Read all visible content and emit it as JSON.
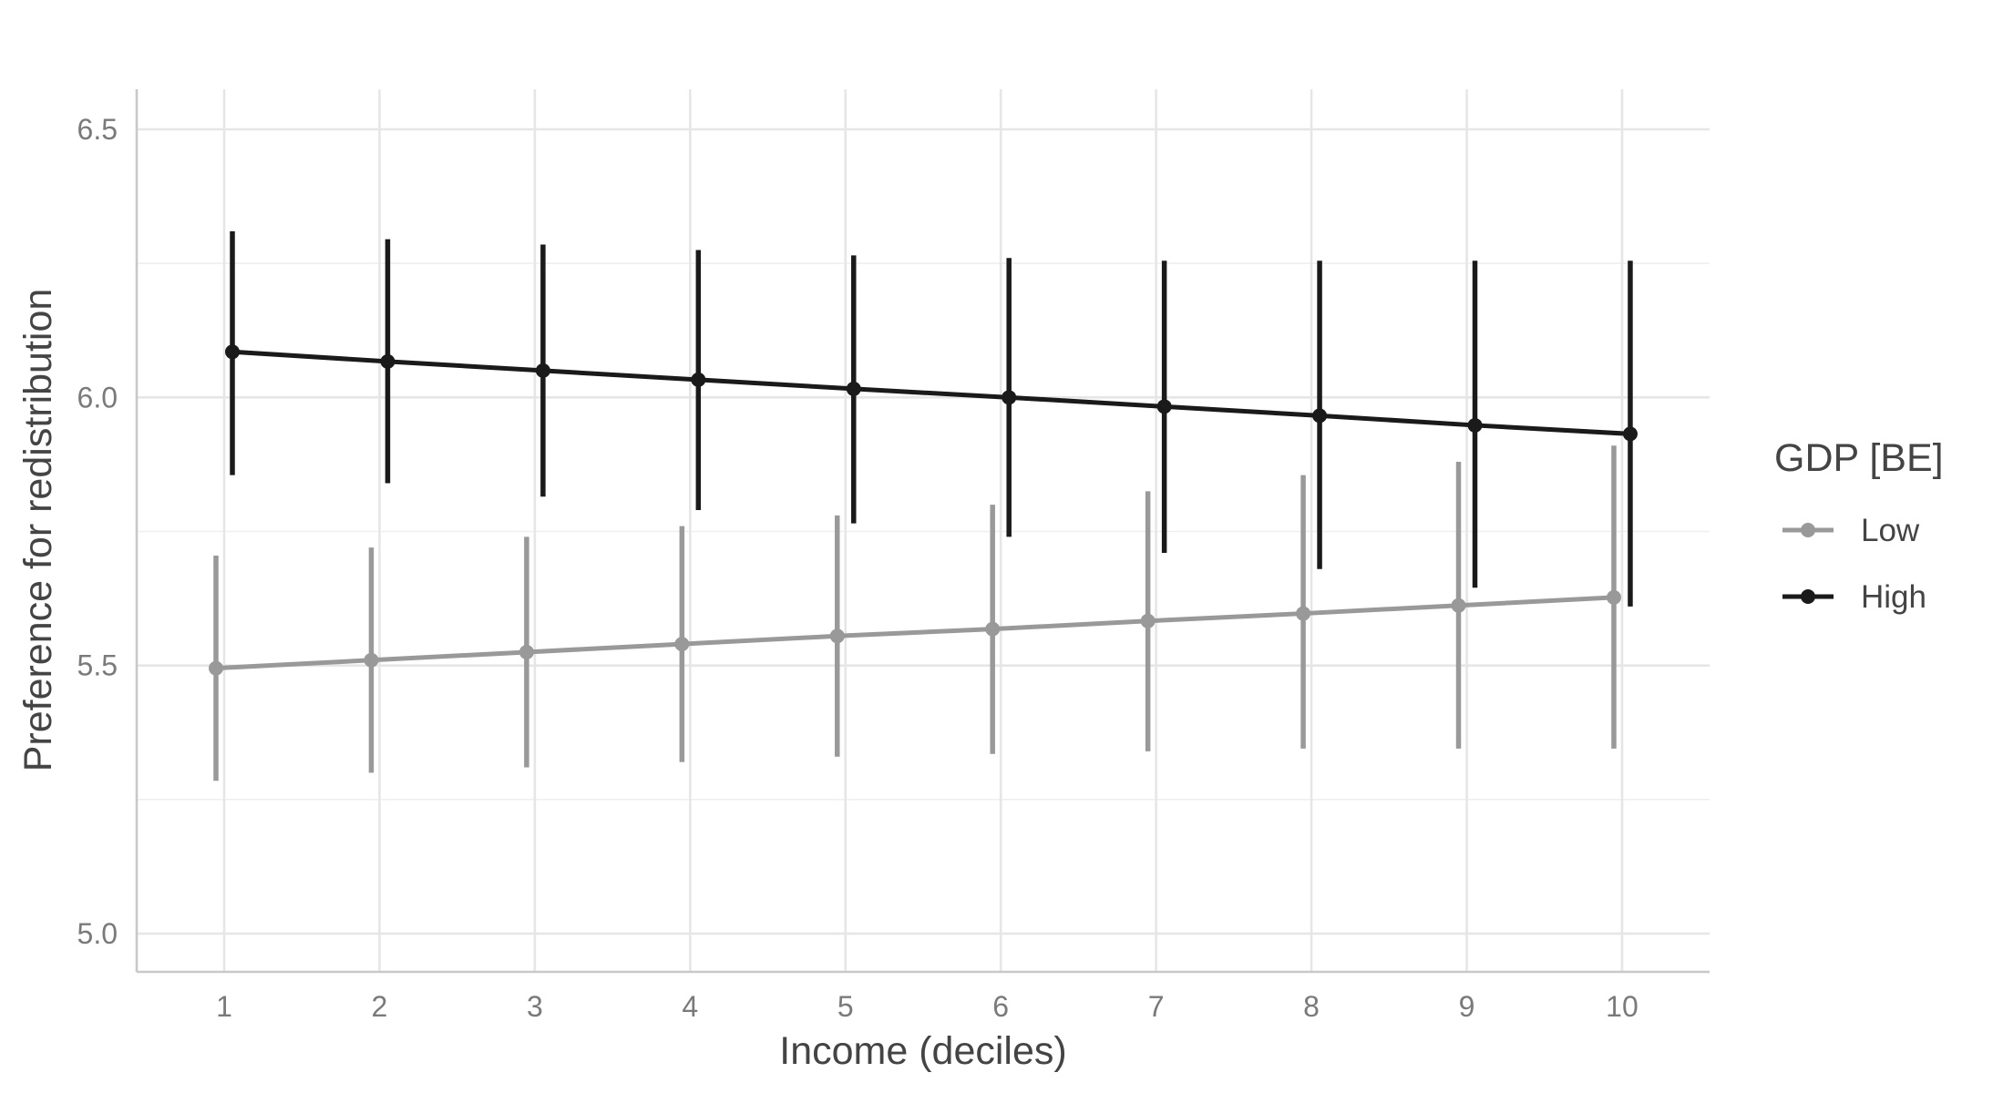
{
  "chart_data": {
    "type": "line",
    "xlabel": "Income (deciles)",
    "ylabel": "Preference for redistribution",
    "x": [
      1,
      2,
      3,
      4,
      5,
      6,
      7,
      8,
      9,
      10
    ],
    "xticks": [
      "1",
      "2",
      "3",
      "4",
      "5",
      "6",
      "7",
      "8",
      "9",
      "10"
    ],
    "ylim": [
      4.93,
      6.58
    ],
    "yticks": [
      "5.0",
      "5.5",
      "6.0",
      "6.5"
    ],
    "ytick_values": [
      5.0,
      5.5,
      6.0,
      6.5
    ],
    "grid": true,
    "legend": {
      "title": "GDP [BE]",
      "position": "right"
    },
    "series": [
      {
        "name": "Low",
        "color": "#999999",
        "values": [
          5.495,
          5.51,
          5.525,
          5.54,
          5.555,
          5.568,
          5.583,
          5.597,
          5.612,
          5.627
        ],
        "lower": [
          5.285,
          5.3,
          5.31,
          5.32,
          5.33,
          5.335,
          5.34,
          5.345,
          5.345,
          5.345
        ],
        "upper": [
          5.705,
          5.72,
          5.74,
          5.76,
          5.78,
          5.8,
          5.825,
          5.855,
          5.88,
          5.91
        ]
      },
      {
        "name": "High",
        "color": "#1a1a1a",
        "values": [
          6.085,
          6.067,
          6.05,
          6.033,
          6.016,
          6.0,
          5.983,
          5.966,
          5.948,
          5.932
        ],
        "lower": [
          5.855,
          5.84,
          5.815,
          5.79,
          5.765,
          5.74,
          5.71,
          5.68,
          5.645,
          5.61
        ],
        "upper": [
          6.31,
          6.295,
          6.285,
          6.275,
          6.265,
          6.26,
          6.255,
          6.255,
          6.255,
          6.255
        ]
      }
    ]
  }
}
